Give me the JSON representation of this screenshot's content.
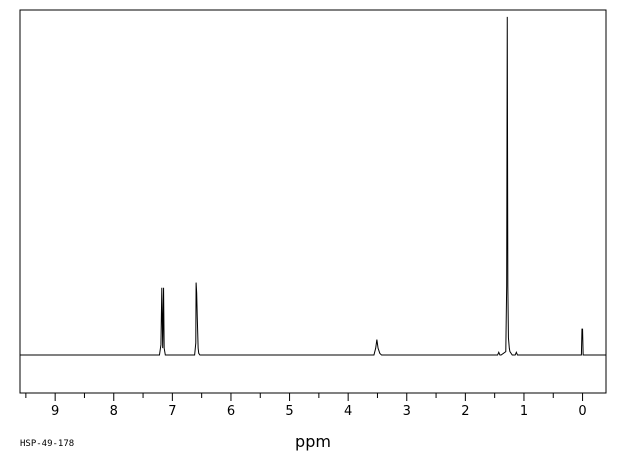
{
  "chart_data": {
    "type": "line",
    "title": "",
    "xlabel": "ppm",
    "ylabel": "",
    "xlim": [
      9.6,
      -0.4
    ],
    "x_reversed": true,
    "ylim": [
      -0.11,
      1.0
    ],
    "x_ticks": [
      9,
      8,
      7,
      6,
      5,
      4,
      3,
      2,
      1,
      0
    ],
    "x_tick_labels": [
      "9",
      "8",
      "7",
      "6",
      "5",
      "4",
      "3",
      "2",
      "1",
      "0"
    ],
    "grid": false,
    "legend": "none",
    "spectrum_code": "HSP-49-178",
    "series": [
      {
        "x": [
          9.6,
          7.22,
          7.195,
          7.18,
          7.165,
          7.15,
          7.14,
          7.12,
          6.62,
          6.6,
          6.595,
          6.585,
          6.575,
          6.56,
          6.55,
          6.53,
          3.56,
          3.53,
          3.51,
          3.49,
          3.46,
          3.43,
          1.45,
          1.43,
          1.41,
          1.39,
          1.31,
          1.295,
          1.285,
          1.275,
          1.265,
          1.25,
          1.24,
          1.2,
          1.15,
          1.13,
          1.11,
          0.02,
          0.01,
          0.0,
          -0.01,
          -0.4
        ],
        "y": [
          0.0,
          0.0,
          0.03,
          0.195,
          0.02,
          0.195,
          0.02,
          0.0,
          0.0,
          0.035,
          0.21,
          0.18,
          0.11,
          0.02,
          0.005,
          0.0,
          0.0,
          0.02,
          0.045,
          0.02,
          0.005,
          0.0,
          0.0,
          0.008,
          0.0,
          0.0,
          0.01,
          0.2,
          0.98,
          0.2,
          0.05,
          0.02,
          0.01,
          0.0,
          0.0,
          0.008,
          0.0,
          0.0,
          0.075,
          0.075,
          0.0,
          0.0
        ],
        "color": "#000000"
      }
    ]
  }
}
